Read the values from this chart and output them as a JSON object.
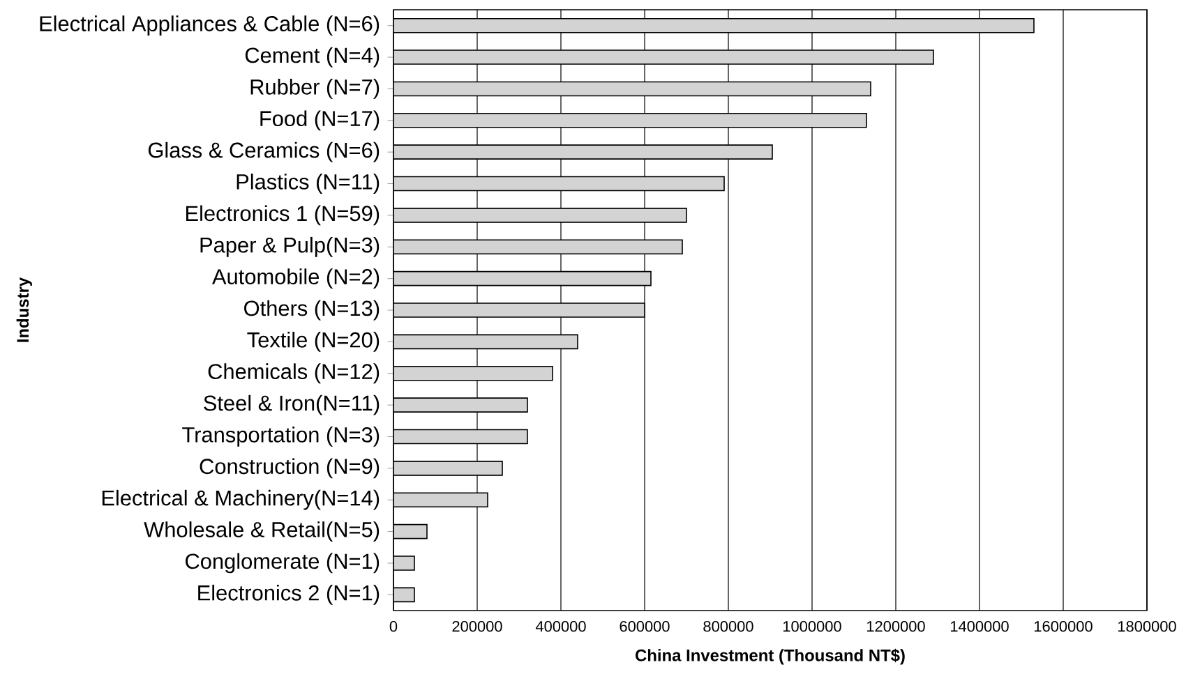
{
  "chart_data": {
    "type": "bar",
    "orientation": "horizontal",
    "xlabel": "China Investment (Thousand NT$)",
    "ylabel": "Industry",
    "categories": [
      "Electrical Appliances & Cable (N=6)",
      "Cement (N=4)",
      "Rubber (N=7)",
      "Food (N=17)",
      "Glass & Ceramics (N=6)",
      "Plastics (N=11)",
      "Electronics 1 (N=59)",
      "Paper & Pulp(N=3)",
      "Automobile (N=2)",
      "Others (N=13)",
      "Textile (N=20)",
      "Chemicals (N=12)",
      "Steel & Iron(N=11)",
      "Transportation (N=3)",
      "Construction (N=9)",
      "Electrical & Machinery(N=14)",
      "Wholesale & Retail(N=5)",
      "Conglomerate (N=1)",
      "Electronics 2 (N=1)"
    ],
    "values": [
      1530000,
      1290000,
      1140000,
      1130000,
      905000,
      790000,
      700000,
      690000,
      615000,
      600000,
      440000,
      380000,
      320000,
      320000,
      260000,
      225000,
      80000,
      50000,
      50000
    ],
    "color": "#d3d3d3",
    "xlim": [
      0,
      1800000
    ],
    "xticks": [
      0,
      200000,
      400000,
      600000,
      800000,
      1000000,
      1200000,
      1400000,
      1600000,
      1800000
    ],
    "grid": "x"
  }
}
